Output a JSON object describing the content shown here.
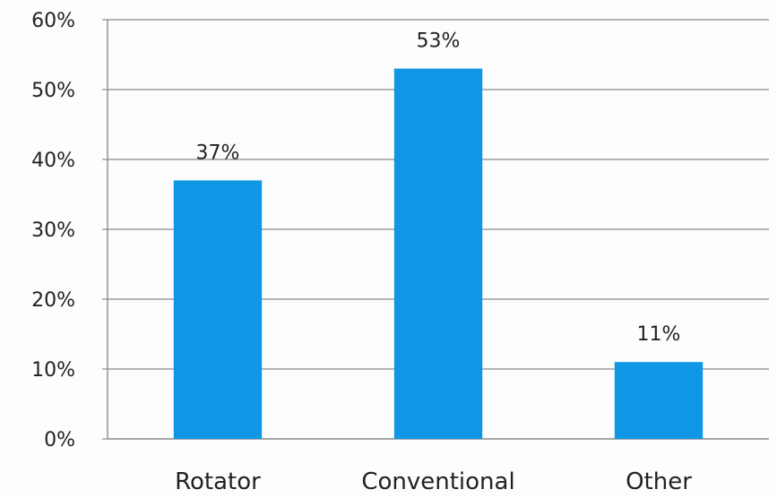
{
  "chart_data": {
    "type": "bar",
    "categories": [
      "Rotator",
      "Conventional",
      "Other"
    ],
    "values": [
      37,
      53,
      11
    ],
    "value_labels": [
      "37%",
      "53%",
      "11%"
    ],
    "title": "",
    "xlabel": "",
    "ylabel": "",
    "ylim": [
      0,
      60
    ],
    "y_ticks": [
      0,
      10,
      20,
      30,
      40,
      50,
      60
    ],
    "y_tick_labels": [
      "0%",
      "10%",
      "20%",
      "30%",
      "40%",
      "50%",
      "60%"
    ],
    "grid": true,
    "legend": "none",
    "bar_color": "#0f97e6",
    "grid_color": "#8a8a8a"
  }
}
